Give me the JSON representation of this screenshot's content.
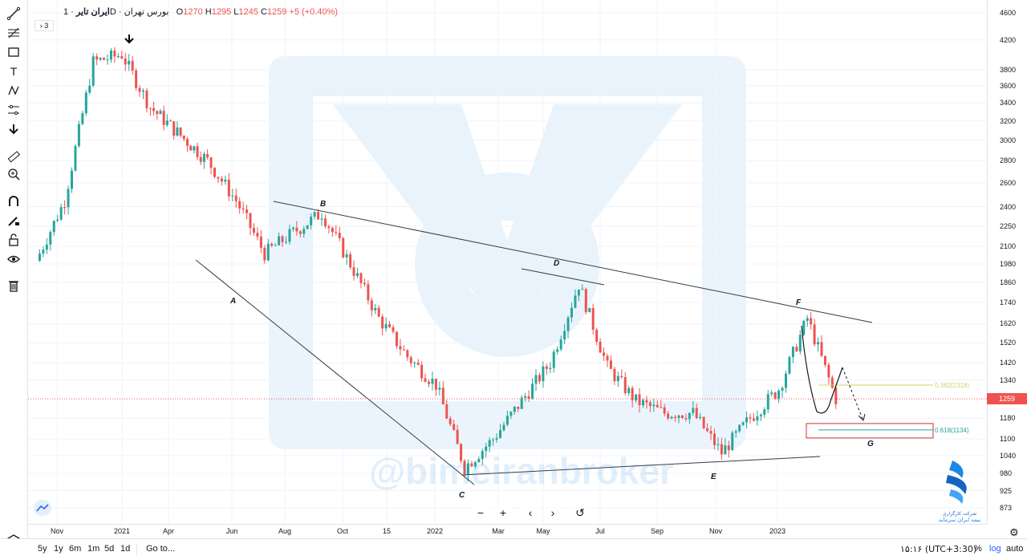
{
  "legend": {
    "symbol": "ایران تایر",
    "interval": "1D",
    "exchange": "بورس تهران",
    "open_label": "O",
    "open": "1270",
    "high_label": "H",
    "high": "1295",
    "low_label": "L",
    "low": "1245",
    "close_label": "C",
    "close": "1259",
    "change": "+5 (+0.40%)",
    "collapse_label": "3"
  },
  "watermark": "@bimeiranbroker",
  "brand": {
    "line1": "شرکت کارگزاری",
    "line2": "بیمه ایران سرمایه"
  },
  "bottom_bar": {
    "ranges": [
      "5y",
      "1y",
      "6m",
      "1m",
      "5d",
      "1d"
    ],
    "goto_label": "Go to...",
    "time_readout": "۱۵:۱۶ (UTC+3:30)",
    "percent_label": "%",
    "log_label": "log",
    "auto_label": "auto"
  },
  "colors": {
    "up": "#26a69a",
    "down": "#ef5350",
    "price_line": "#ef5350",
    "fib_382": "#c6d96c",
    "fib_618": "#26a69a",
    "zone": "#d32f2f"
  },
  "icons": [
    "line-tool-icon",
    "fib-tool-icon",
    "rectangle-tool-icon",
    "text-tool-icon",
    "pattern-tool-icon",
    "projection-tool-icon",
    "arrow-icon",
    "ruler-icon",
    "zoom-in-icon",
    "magnet-icon",
    "pencil-lock-icon",
    "lock-icon",
    "eye-icon",
    "trash-icon",
    "layers-icon"
  ],
  "chart_data": {
    "type": "candlestick",
    "scale": "log",
    "y_ticks": [
      4600,
      4200,
      3800,
      3600,
      3400,
      3200,
      3000,
      2800,
      2600,
      2400,
      2250,
      2100,
      1980,
      1860,
      1740,
      1620,
      1520,
      1420,
      1340,
      1180,
      1100,
      1040,
      980,
      925,
      873
    ],
    "x_ticks": [
      "Nov",
      "2021",
      "Apr",
      "Jun",
      "Aug",
      "Oct",
      "15",
      "2022",
      "Mar",
      "May",
      "Jul",
      "Sep",
      "Nov",
      "2023"
    ],
    "last_price": 1259,
    "pattern_points": [
      {
        "label": "A",
        "date": "2021-06",
        "price": 1800
      },
      {
        "label": "B",
        "date": "2021-08",
        "price": 2350
      },
      {
        "label": "C",
        "date": "2022-01",
        "price": 950
      },
      {
        "label": "D",
        "date": "2022-05",
        "price": 1880
      },
      {
        "label": "E",
        "date": "2022-10",
        "price": 1030
      },
      {
        "label": "F",
        "date": "2023-01",
        "price": 1700
      },
      {
        "label": "G",
        "date": "2023-02",
        "price": 1134
      }
    ],
    "fib_levels": [
      {
        "label": "0.382(1318)",
        "value": 1318
      },
      {
        "label": "0.618(1134)",
        "value": 1134
      }
    ],
    "approx_closes": [
      {
        "date": "2020-10",
        "price": 2000
      },
      {
        "date": "2020-11",
        "price": 2450
      },
      {
        "date": "2020-12",
        "price": 3900
      },
      {
        "date": "2021-01",
        "price": 4000
      },
      {
        "date": "2021-02",
        "price": 3350
      },
      {
        "date": "2021-04",
        "price": 2800
      },
      {
        "date": "2021-05",
        "price": 2450
      },
      {
        "date": "2021-06",
        "price": 2050
      },
      {
        "date": "2021-07",
        "price": 2200
      },
      {
        "date": "2021-08",
        "price": 2350
      },
      {
        "date": "2021-09",
        "price": 1980
      },
      {
        "date": "2021-10",
        "price": 1650
      },
      {
        "date": "2021-11",
        "price": 1450
      },
      {
        "date": "2021-12",
        "price": 1320
      },
      {
        "date": "2022-01",
        "price": 1000
      },
      {
        "date": "2022-02",
        "price": 1100
      },
      {
        "date": "2022-03",
        "price": 1250
      },
      {
        "date": "2022-04",
        "price": 1420
      },
      {
        "date": "2022-05",
        "price": 1850
      },
      {
        "date": "2022-06",
        "price": 1400
      },
      {
        "date": "2022-07",
        "price": 1250
      },
      {
        "date": "2022-08",
        "price": 1200
      },
      {
        "date": "2022-09",
        "price": 1200
      },
      {
        "date": "2022-10",
        "price": 1050
      },
      {
        "date": "2022-11",
        "price": 1180
      },
      {
        "date": "2022-12",
        "price": 1300
      },
      {
        "date": "2023-01",
        "price": 1650
      },
      {
        "date": "2023-02",
        "price": 1259
      }
    ]
  }
}
